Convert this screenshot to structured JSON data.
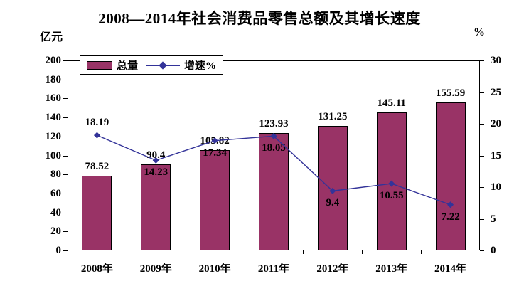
{
  "chart_data": {
    "type": "bar+line combo",
    "title": "2008—2014年社会消费品零售总额及其增长速度",
    "left_axis": {
      "unit": "亿元",
      "min": 0,
      "max": 200,
      "step": 20,
      "ticks": [
        0,
        20,
        40,
        60,
        80,
        100,
        120,
        140,
        160,
        180,
        200
      ]
    },
    "right_axis": {
      "unit": "%",
      "min": 0,
      "max": 30,
      "step": 5,
      "ticks": [
        0,
        5,
        10,
        15,
        20,
        25,
        30
      ]
    },
    "categories": [
      "2008年",
      "2009年",
      "2010年",
      "2011年",
      "2012年",
      "2013年",
      "2014年"
    ],
    "series": [
      {
        "name": "总量",
        "type": "bar",
        "axis": "left",
        "color": "#993366",
        "border_color": "#000000",
        "values": [
          78.52,
          90.4,
          105.82,
          123.93,
          131.25,
          145.11,
          155.59
        ],
        "data_labels": [
          "78.52",
          "90.4",
          "105.82",
          "123.93",
          "131.25",
          "145.11",
          "155.59"
        ]
      },
      {
        "name": "增速%",
        "type": "line",
        "axis": "right",
        "color": "#333399",
        "marker": "diamond",
        "values": [
          18.19,
          14.23,
          17.34,
          18.05,
          9.4,
          10.55,
          7.22
        ],
        "data_labels": [
          "18.19",
          "14.23",
          "17.34",
          "18.05",
          "9.4",
          "10.55",
          "7.22"
        ],
        "label_positions": [
          "above",
          "below",
          "below",
          "below",
          "below",
          "below",
          "below"
        ]
      }
    ],
    "legend": {
      "position": "top-left-inside",
      "entries": [
        "总量",
        "增速%"
      ]
    },
    "plot": {
      "background": "#FFFFFF",
      "border_color": "#000000",
      "gridlines": false
    }
  }
}
